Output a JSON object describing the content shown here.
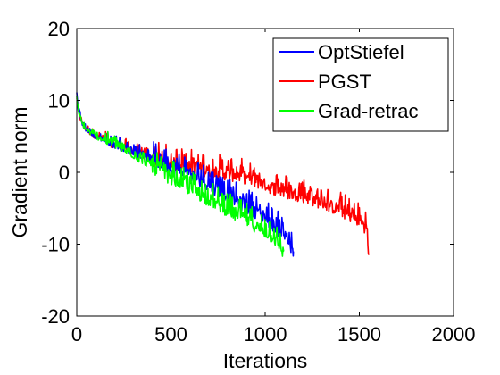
{
  "chart_data": {
    "type": "line",
    "xlabel": "Iterations",
    "ylabel": "Gradient norm",
    "xlim": [
      0,
      2000
    ],
    "ylim": [
      -20,
      20
    ],
    "x_ticks": [
      0,
      500,
      1000,
      1500,
      2000
    ],
    "y_ticks": [
      -20,
      -10,
      0,
      10,
      20
    ],
    "grid": false,
    "legend_position": "top-right",
    "series": [
      {
        "name": "OptStiefel",
        "color": "#0000ff",
        "x": [
          0,
          10,
          25,
          50,
          100,
          150,
          200,
          300,
          400,
          500,
          600,
          700,
          800,
          900,
          1000,
          1100,
          1150
        ],
        "y": [
          10.5,
          8.5,
          7.0,
          6.0,
          5.0,
          4.5,
          4.0,
          3.0,
          2.0,
          1.0,
          0.0,
          -1.5,
          -3.0,
          -4.5,
          -6.0,
          -8.5,
          -11.0
        ]
      },
      {
        "name": "PGST",
        "color": "#ff0000",
        "x": [
          0,
          10,
          25,
          50,
          100,
          150,
          200,
          300,
          400,
          500,
          600,
          700,
          800,
          900,
          1000,
          1100,
          1200,
          1300,
          1400,
          1500,
          1540,
          1545,
          1550
        ],
        "y": [
          10.5,
          8.5,
          7.0,
          6.0,
          5.0,
          4.5,
          4.0,
          3.0,
          2.0,
          1.5,
          1.0,
          0.5,
          0.0,
          -0.5,
          -1.5,
          -2.5,
          -3.0,
          -4.0,
          -5.0,
          -6.5,
          -7.5,
          -10.0,
          -11.5
        ]
      },
      {
        "name": "Grad-retrac",
        "color": "#00ff00",
        "x": [
          0,
          10,
          25,
          50,
          100,
          150,
          200,
          300,
          400,
          500,
          600,
          700,
          800,
          900,
          1000,
          1050,
          1100
        ],
        "y": [
          10.5,
          8.5,
          7.0,
          6.0,
          5.0,
          4.5,
          4.0,
          2.5,
          1.0,
          -0.5,
          -2.0,
          -3.5,
          -5.0,
          -6.5,
          -8.0,
          -9.0,
          -11.0
        ]
      }
    ]
  }
}
